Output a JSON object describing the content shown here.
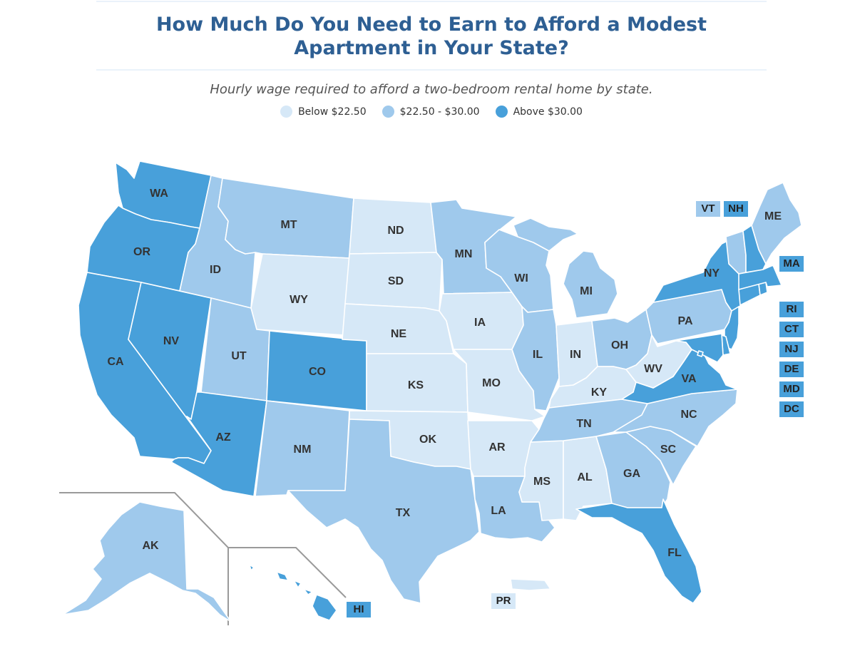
{
  "title": "How Much Do You Need to Earn to Afford a Modest Apartment in Your State?",
  "subtitle": "Hourly wage required to afford a two-bedroom rental home by state.",
  "colors": {
    "low": "#d6e8f7",
    "mid": "#9fc9ec",
    "high": "#48a0da"
  },
  "legend": [
    {
      "key": "low",
      "label": "Below $22.50"
    },
    {
      "key": "mid",
      "label": "$22.50 - $30.00"
    },
    {
      "key": "high",
      "label": "Above $30.00"
    }
  ],
  "states": {
    "WA": "high",
    "OR": "high",
    "CA": "high",
    "NV": "high",
    "AZ": "high",
    "CO": "high",
    "ID": "mid",
    "MT": "mid",
    "UT": "mid",
    "NM": "mid",
    "TX": "mid",
    "MN": "mid",
    "WI": "mid",
    "MI": "mid",
    "IL": "mid",
    "OH": "mid",
    "PA": "mid",
    "TN": "mid",
    "NC": "mid",
    "SC": "mid",
    "GA": "mid",
    "LA": "mid",
    "AK": "mid",
    "ME": "mid",
    "VT": "mid",
    "WY": "low",
    "ND": "low",
    "SD": "low",
    "NE": "low",
    "KS": "low",
    "OK": "low",
    "IA": "low",
    "MO": "low",
    "AR": "low",
    "MS": "low",
    "AL": "low",
    "IN": "low",
    "KY": "low",
    "WV": "low",
    "PR": "low",
    "NY": "high",
    "VA": "high",
    "FL": "high",
    "HI": "high",
    "NH": "high",
    "MA": "high",
    "RI": "high",
    "CT": "high",
    "NJ": "high",
    "DE": "high",
    "MD": "high",
    "DC": "high"
  }
}
